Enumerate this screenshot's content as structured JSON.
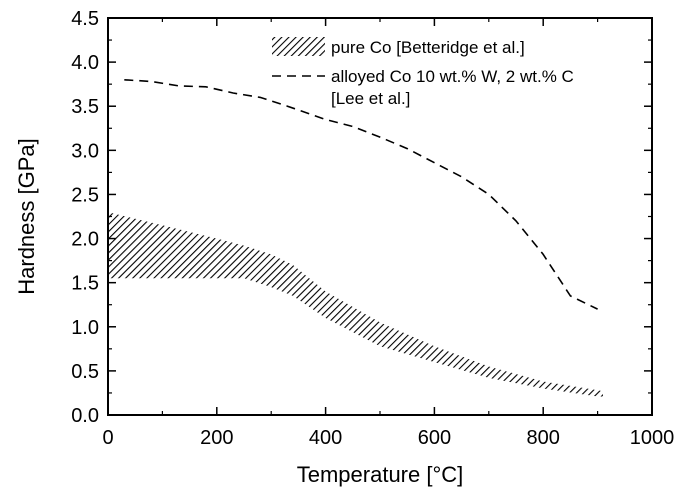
{
  "chart_data": {
    "type": "line",
    "title": "",
    "xlabel": "Temperature [°C]",
    "ylabel": "Hardness [GPa]",
    "xlim": [
      0,
      1000
    ],
    "ylim": [
      0,
      4.5
    ],
    "x_ticks": [
      "0",
      "200",
      "400",
      "600",
      "800",
      "1000"
    ],
    "y_ticks": [
      "0.0",
      "0.5",
      "1.0",
      "1.5",
      "2.0",
      "2.5",
      "3.0",
      "3.5",
      "4.0",
      "4.5"
    ],
    "grid": false,
    "legend_position": "top-right",
    "series": [
      {
        "name": "pure Co [Betteridge et al.]",
        "style": "hatched-band",
        "x": [
          0,
          100,
          200,
          250,
          300,
          340,
          400,
          500,
          600,
          700,
          800,
          900,
          910
        ],
        "y_upper": [
          2.3,
          2.15,
          2.0,
          1.92,
          1.82,
          1.7,
          1.4,
          1.05,
          0.78,
          0.55,
          0.38,
          0.28,
          0.27
        ],
        "y_lower": [
          1.55,
          1.55,
          1.55,
          1.55,
          1.45,
          1.35,
          1.1,
          0.78,
          0.6,
          0.42,
          0.3,
          0.21,
          0.21
        ]
      },
      {
        "name": "alloyed Co 10 wt.% W, 2 wt.% C\n[Lee et al.]",
        "style": "dashed",
        "x": [
          30,
          80,
          130,
          180,
          230,
          280,
          330,
          400,
          450,
          500,
          550,
          600,
          650,
          700,
          750,
          800,
          850,
          900
        ],
        "y": [
          3.8,
          3.78,
          3.73,
          3.72,
          3.65,
          3.6,
          3.5,
          3.35,
          3.27,
          3.15,
          3.02,
          2.86,
          2.7,
          2.5,
          2.2,
          1.82,
          1.35,
          1.2
        ]
      }
    ]
  }
}
